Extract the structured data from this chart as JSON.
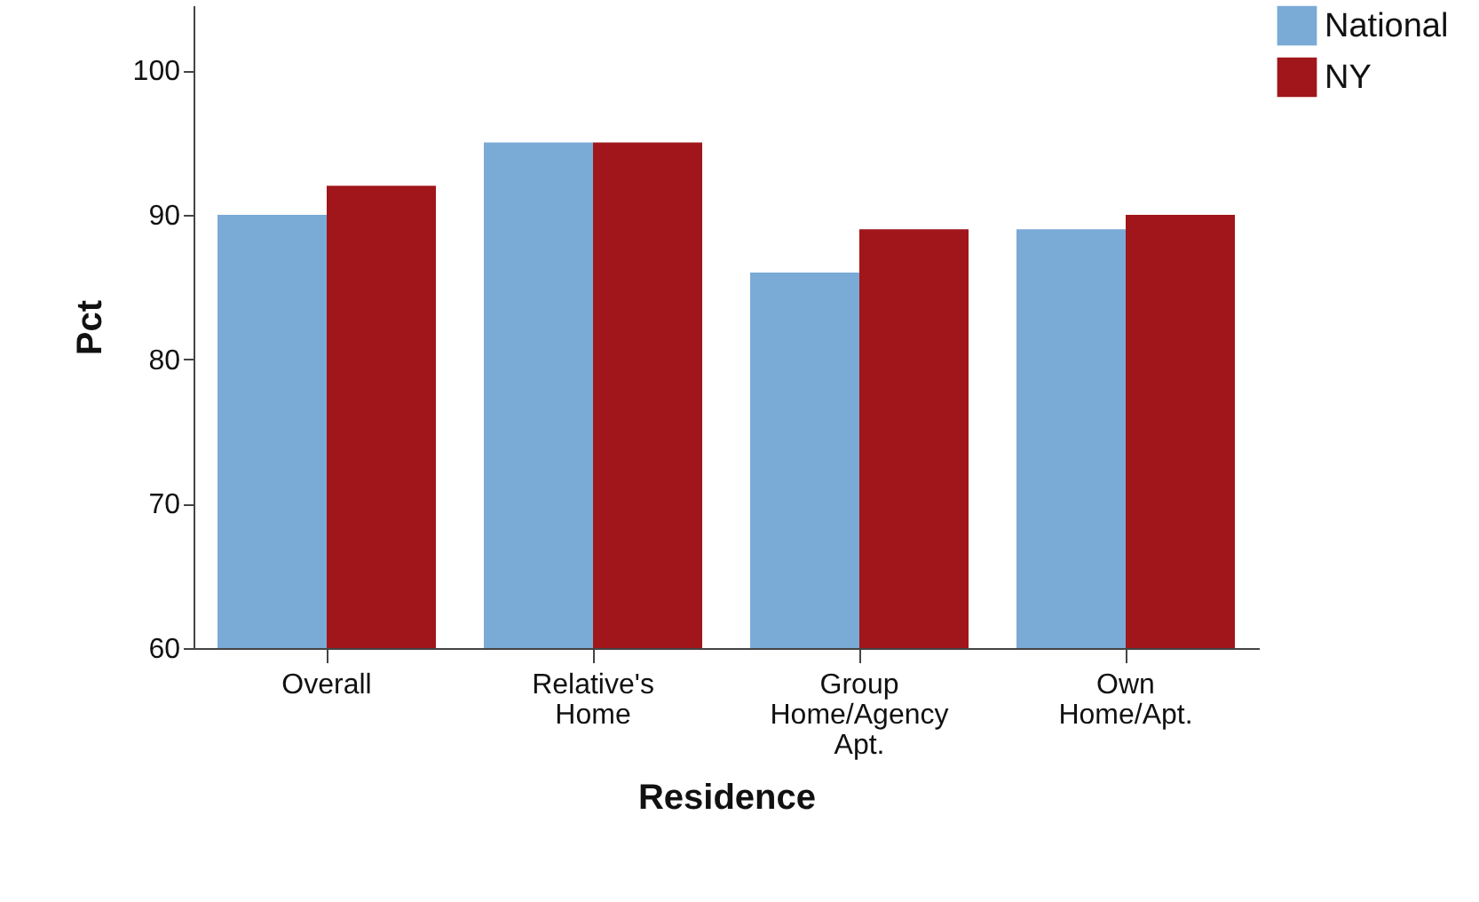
{
  "chart_data": {
    "type": "bar",
    "xlabel": "Residence",
    "ylabel": "Pct",
    "categories": [
      "Overall",
      "Relative's Home",
      "Group Home/Agency Apt.",
      "Own Home/Apt."
    ],
    "series": [
      {
        "name": "National",
        "color": "#7aaad6",
        "values": [
          90,
          95,
          86,
          89
        ]
      },
      {
        "name": "NY",
        "color": "#a0161a",
        "values": [
          92,
          95,
          89,
          90
        ]
      }
    ],
    "ylim": [
      60,
      104.5
    ],
    "yticks": [
      60,
      70,
      80,
      90,
      100
    ],
    "grid": false,
    "legend": "top right"
  }
}
